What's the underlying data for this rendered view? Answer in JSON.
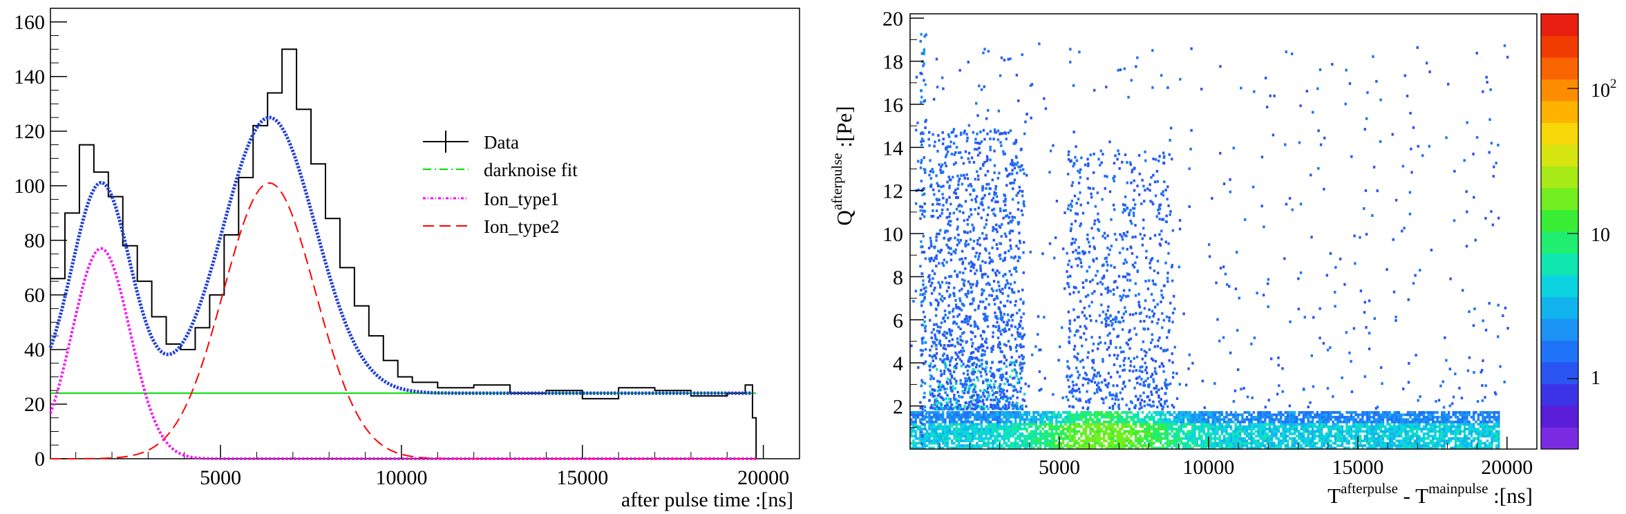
{
  "chart_data": [
    {
      "type": "line",
      "title": "",
      "xlabel": "after pulse time :[ns]",
      "ylabel": "",
      "xlim": [
        300,
        21000
      ],
      "ylim": [
        0,
        165
      ],
      "xticks": [
        5000,
        10000,
        15000,
        20000
      ],
      "yticks": [
        0,
        20,
        40,
        60,
        80,
        100,
        120,
        140,
        160
      ],
      "legend_position": "top-center",
      "legend": [
        "Data",
        "darknoise fit",
        "Ion_type1",
        "Ion_type2"
      ],
      "darknoise_level": 24,
      "ion_type1": {
        "amplitude": 77,
        "mean": 1700,
        "sigma": 800
      },
      "ion_type2": {
        "amplitude": 101,
        "mean": 6350,
        "sigma": 1270
      },
      "series": [
        {
          "name": "Data",
          "color": "#000000",
          "style": "step",
          "x": [
            300,
            700,
            1100,
            1500,
            1900,
            2300,
            2700,
            3100,
            3500,
            3900,
            4300,
            4700,
            5100,
            5500,
            5900,
            6300,
            6700,
            7100,
            7500,
            7900,
            8300,
            8700,
            9100,
            9500,
            9900,
            10300,
            11000,
            12000,
            13000,
            14000,
            15000,
            16000,
            17000,
            18000,
            19000,
            19500,
            19700,
            19800
          ],
          "y": [
            66,
            90,
            115,
            105,
            96,
            78,
            65,
            52,
            42,
            40,
            48,
            60,
            82,
            103,
            122,
            134,
            150,
            128,
            108,
            88,
            70,
            56,
            45,
            36,
            30,
            28,
            26,
            27,
            24,
            25,
            22,
            26,
            25,
            23,
            24,
            27,
            15,
            3
          ]
        },
        {
          "name": "darknoise fit",
          "color": "#00dd00",
          "style": "dash-dot",
          "y": 24
        },
        {
          "name": "Ion_type1",
          "color": "#ff00ff",
          "style": "dotted"
        },
        {
          "name": "Ion_type2",
          "color": "#ff0000",
          "style": "dashed"
        },
        {
          "name": "Total fit",
          "color": "#1f3fd8",
          "style": "dotted-thick"
        }
      ]
    },
    {
      "type": "heatmap",
      "title": "",
      "xlabel": "T^{afterpulse} - T^{mainpulse} :[ns]",
      "ylabel": "Q^{afterpulse} :[Pe]",
      "xlim": [
        0,
        21000
      ],
      "ylim": [
        0,
        20.2
      ],
      "xticks": [
        5000,
        10000,
        15000,
        20000
      ],
      "yticks": [
        2,
        4,
        6,
        8,
        10,
        12,
        14,
        16,
        18,
        20
      ],
      "colorbar": {
        "scale": "log",
        "min": 0.3,
        "max": 300,
        "ticks": [
          "1",
          "10",
          "10^2"
        ]
      },
      "regions": [
        {
          "description": "dense band",
          "x_range": [
            0,
            19700
          ],
          "y_range": [
            0,
            1.8
          ],
          "peak_x": 6500
        },
        {
          "description": "early-time column",
          "x_range": [
            500,
            4000
          ],
          "y_range": [
            0,
            15
          ]
        },
        {
          "description": "ion_type2 column",
          "x_range": [
            5500,
            8500
          ],
          "y_range": [
            0,
            14
          ]
        },
        {
          "description": "sparse background",
          "x_range": [
            0,
            20000
          ],
          "y_range": [
            0,
            20
          ]
        }
      ]
    }
  ],
  "labels": {
    "data": "Data",
    "darknoise": "darknoise fit",
    "ion1": "Ion_type1",
    "ion2": "Ion_type2",
    "left_xlabel": "after pulse time :[ns]",
    "right_x_T1": "T",
    "right_x_sup1": "afterpulse",
    "right_x_mid": " - T",
    "right_x_sup2": "mainpulse",
    "right_x_end": " :[ns]",
    "right_y_Q": "Q",
    "right_y_sup": "afterpulse",
    "right_y_end": " :[Pe]",
    "cb_1": "1",
    "cb_10": "10",
    "cb_100_base": "10",
    "cb_100_exp": "2"
  }
}
